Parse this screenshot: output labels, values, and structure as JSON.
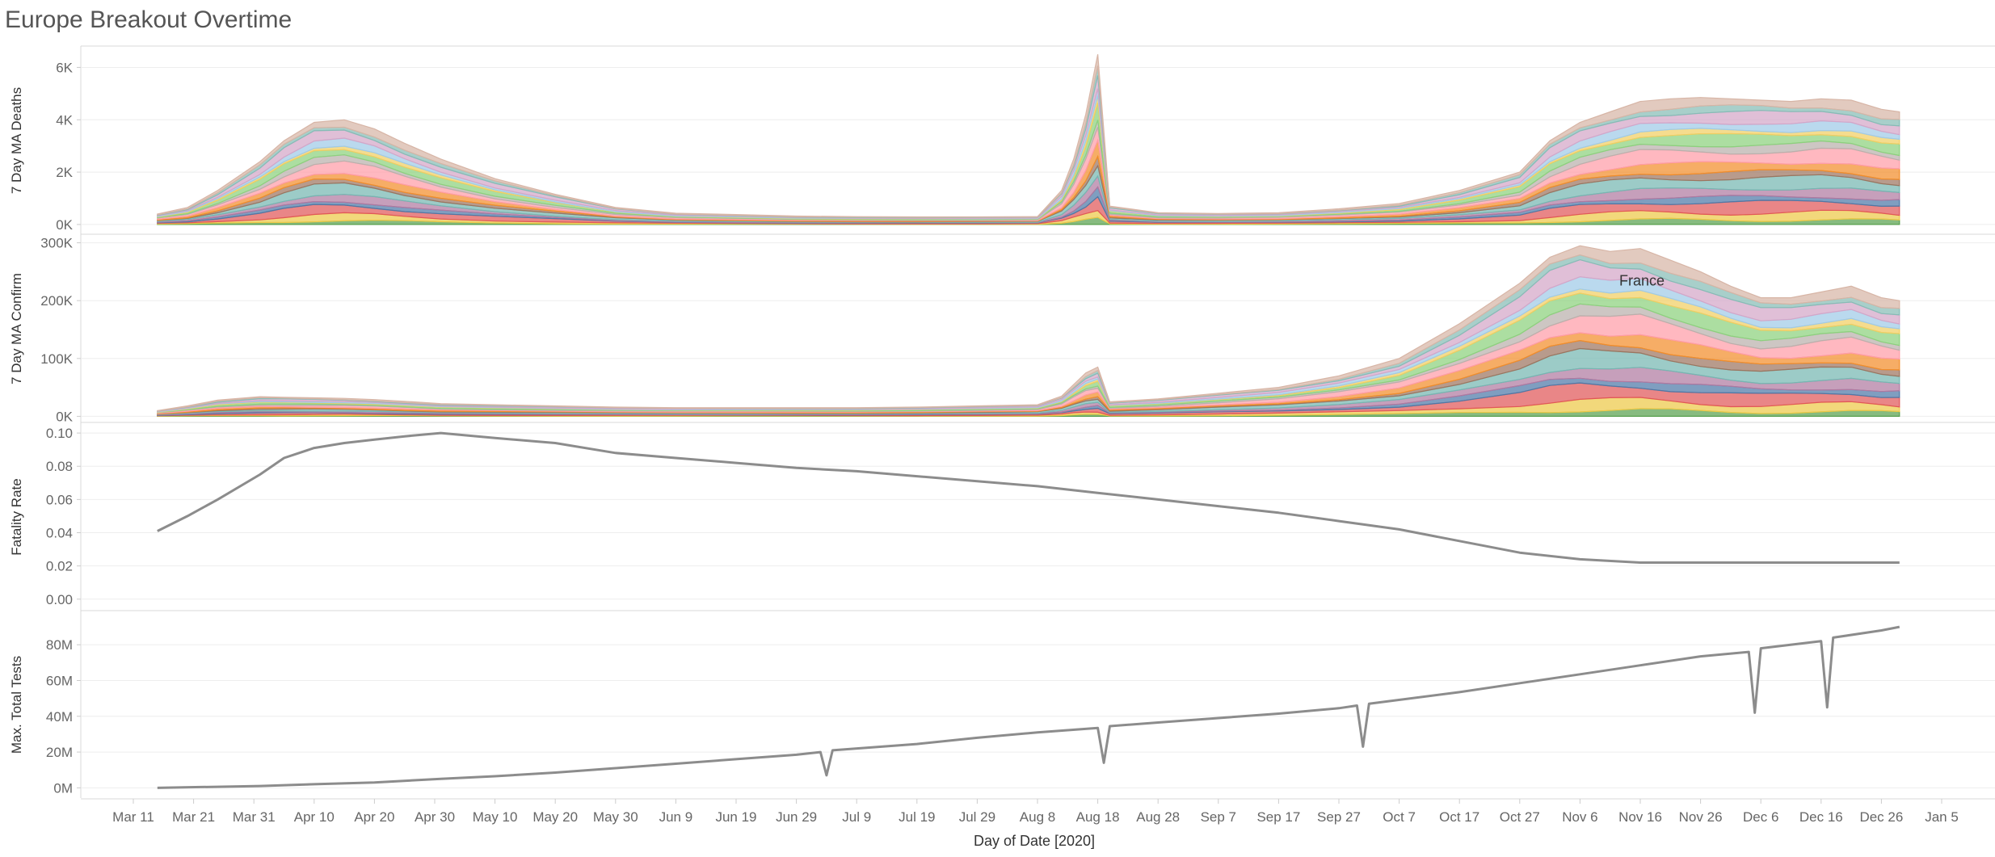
{
  "dashboard": {
    "title": "Europe Breakout Overtime",
    "x_axis_title": "Day of Date [2020]",
    "x_ticks": [
      "Mar 11",
      "Mar 21",
      "Mar 31",
      "Apr 10",
      "Apr 20",
      "Apr 30",
      "May 10",
      "May 20",
      "May 30",
      "Jun 9",
      "Jun 19",
      "Jun 29",
      "Jul 9",
      "Jul 19",
      "Jul 29",
      "Aug 8",
      "Aug 18",
      "Aug 28",
      "Sep 7",
      "Sep 17",
      "Sep 27",
      "Oct 7",
      "Oct 17",
      "Oct 27",
      "Nov 6",
      "Nov 16",
      "Nov 26",
      "Dec 6",
      "Dec 16",
      "Dec 26",
      "Jan 5"
    ]
  },
  "colors": {
    "stack": [
      "#59a14f",
      "#edc948",
      "#e15759",
      "#4e79a7",
      "#b07aa1",
      "#76b7b2",
      "#9c755f",
      "#f28e2b",
      "#ff9da7",
      "#bab0ac",
      "#8cd17d",
      "#f1ce63",
      "#a0cbe8",
      "#d4a6c8",
      "#86bcb6",
      "#d7b5a6"
    ],
    "line": "#8c8c8c",
    "grid": "#eeeeee",
    "axis_text": "#666666"
  },
  "chart_data": [
    {
      "type": "area",
      "stacked": true,
      "ylabel": "7 Day MA Deaths",
      "yticks": [
        "0K",
        "2K",
        "4K",
        "6K"
      ],
      "ylim": [
        -250,
        6600
      ],
      "x": [
        "Mar 15",
        "Mar 20",
        "Mar 25",
        "Apr 1",
        "Apr 5",
        "Apr 10",
        "Apr 15",
        "Apr 20",
        "Apr 25",
        "May 1",
        "May 10",
        "May 20",
        "May 30",
        "Jun 9",
        "Jun 19",
        "Jun 29",
        "Jul 9",
        "Jul 19",
        "Jul 29",
        "Aug 8",
        "Aug 12",
        "Aug 14",
        "Aug 16",
        "Aug 18",
        "Aug 20",
        "Aug 28",
        "Sep 7",
        "Sep 17",
        "Sep 27",
        "Oct 7",
        "Oct 17",
        "Oct 27",
        "Nov 1",
        "Nov 6",
        "Nov 11",
        "Nov 16",
        "Nov 21",
        "Nov 26",
        "Dec 1",
        "Dec 6",
        "Dec 11",
        "Dec 16",
        "Dec 21",
        "Dec 26",
        "Dec 29"
      ],
      "totals": [
        400,
        650,
        1300,
        2400,
        3200,
        3900,
        4000,
        3650,
        3100,
        2500,
        1750,
        1150,
        650,
        430,
        380,
        320,
        300,
        290,
        290,
        300,
        1300,
        2500,
        4200,
        6500,
        700,
        450,
        420,
        450,
        600,
        800,
        1300,
        2000,
        3200,
        3900,
        4300,
        4700,
        4800,
        4850,
        4800,
        4750,
        4700,
        4800,
        4750,
        4400,
        4300
      ],
      "series_count": 16,
      "annotation": null,
      "dates_start": "Mar 15"
    },
    {
      "type": "area",
      "stacked": true,
      "ylabel": "7 Day MA Confirm",
      "yticks": [
        "0K",
        "100K",
        "200K",
        "300K"
      ],
      "ylim": [
        -5000,
        305000
      ],
      "x": [
        "Mar 15",
        "Mar 20",
        "Mar 25",
        "Apr 1",
        "Apr 5",
        "Apr 10",
        "Apr 15",
        "Apr 20",
        "Apr 25",
        "May 1",
        "May 10",
        "May 20",
        "May 30",
        "Jun 9",
        "Jun 19",
        "Jun 29",
        "Jul 9",
        "Jul 19",
        "Jul 29",
        "Aug 8",
        "Aug 12",
        "Aug 14",
        "Aug 16",
        "Aug 18",
        "Aug 20",
        "Aug 28",
        "Sep 7",
        "Sep 17",
        "Sep 27",
        "Oct 7",
        "Oct 17",
        "Oct 27",
        "Nov 1",
        "Nov 6",
        "Nov 11",
        "Nov 16",
        "Nov 21",
        "Nov 26",
        "Dec 1",
        "Dec 6",
        "Dec 11",
        "Dec 16",
        "Dec 21",
        "Dec 26",
        "Dec 29"
      ],
      "totals": [
        10000,
        18000,
        28000,
        34000,
        33000,
        32000,
        31000,
        29000,
        26000,
        22000,
        20000,
        18000,
        16000,
        15000,
        15000,
        15000,
        15000,
        16000,
        18000,
        20000,
        35000,
        55000,
        75000,
        85000,
        25000,
        30000,
        40000,
        50000,
        70000,
        100000,
        160000,
        230000,
        275000,
        295000,
        285000,
        290000,
        270000,
        250000,
        225000,
        205000,
        205000,
        215000,
        225000,
        205000,
        200000
      ],
      "series_count": 16,
      "annotation": "France",
      "annotation_at": "Nov 16"
    },
    {
      "type": "line",
      "ylabel": "Fatality Rate",
      "yticks": [
        "0.00",
        "0.02",
        "0.04",
        "0.06",
        "0.08",
        "0.10"
      ],
      "ylim": [
        -0.004,
        0.102
      ],
      "x": [
        "Mar 15",
        "Mar 20",
        "Mar 25",
        "Apr 1",
        "Apr 5",
        "Apr 10",
        "Apr 15",
        "Apr 20",
        "Apr 25",
        "May 1",
        "May 10",
        "May 20",
        "May 30",
        "Jun 9",
        "Jun 19",
        "Jun 29",
        "Jul 9",
        "Jul 19",
        "Jul 29",
        "Aug 8",
        "Aug 18",
        "Aug 28",
        "Sep 7",
        "Sep 17",
        "Sep 27",
        "Oct 7",
        "Oct 17",
        "Oct 27",
        "Nov 6",
        "Nov 16",
        "Nov 26",
        "Dec 6",
        "Dec 16",
        "Dec 26",
        "Dec 29"
      ],
      "y": [
        0.041,
        0.05,
        0.06,
        0.075,
        0.085,
        0.091,
        0.094,
        0.096,
        0.098,
        0.1,
        0.097,
        0.094,
        0.088,
        0.085,
        0.082,
        0.079,
        0.077,
        0.074,
        0.071,
        0.068,
        0.064,
        0.06,
        0.056,
        0.052,
        0.047,
        0.042,
        0.035,
        0.028,
        0.024,
        0.022,
        0.022,
        0.022,
        0.022,
        0.022,
        0.022
      ]
    },
    {
      "type": "line",
      "ylabel": "Max. Total Tests",
      "yticks": [
        "0M",
        "20M",
        "40M",
        "60M",
        "80M"
      ],
      "ylim": [
        -3000000,
        95000000
      ],
      "x": [
        "Mar 15",
        "Apr 1",
        "Apr 10",
        "Apr 20",
        "May 1",
        "May 10",
        "May 20",
        "May 30",
        "Jun 9",
        "Jun 19",
        "Jun 29",
        "Jul 3",
        "Jul 4",
        "Jul 5",
        "Jul 19",
        "Jul 29",
        "Aug 8",
        "Aug 18",
        "Aug 19",
        "Aug 20",
        "Aug 28",
        "Sep 7",
        "Sep 17",
        "Sep 27",
        "Sep 30",
        "Oct 1",
        "Oct 2",
        "Oct 17",
        "Oct 27",
        "Nov 6",
        "Nov 16",
        "Nov 26",
        "Dec 4",
        "Dec 5",
        "Dec 6",
        "Dec 16",
        "Dec 17",
        "Dec 18",
        "Dec 26",
        "Dec 29"
      ],
      "y": [
        0,
        1000000,
        2000000,
        3000000,
        5000000,
        6500000,
        8500000,
        11000000,
        13500000,
        16000000,
        18500000,
        20000000,
        7000000,
        21000000,
        24500000,
        28000000,
        31000000,
        33500000,
        14000000,
        34500000,
        36500000,
        39000000,
        41500000,
        44500000,
        46000000,
        23000000,
        47000000,
        53500000,
        58500000,
        63500000,
        68500000,
        73500000,
        76000000,
        42000000,
        78000000,
        82000000,
        45000000,
        84000000,
        88000000,
        90000000
      ]
    }
  ]
}
